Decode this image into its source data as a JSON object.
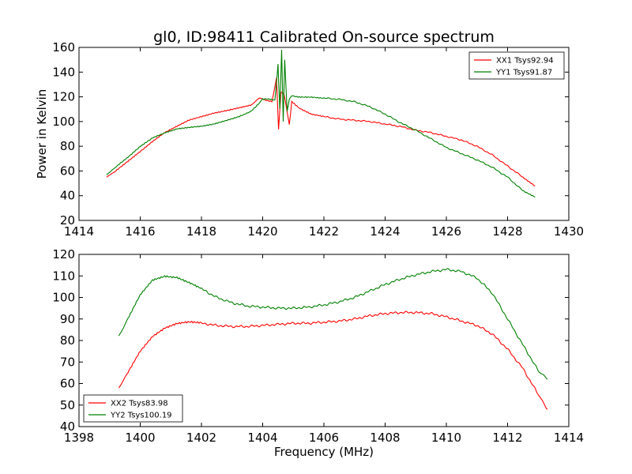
{
  "chart_data": [
    {
      "type": "line",
      "title": "gl0, ID:98411 Calibrated On-source spectrum",
      "xlabel": "",
      "ylabel": "Power in Kelvin",
      "xlim": [
        1414,
        1430
      ],
      "ylim": [
        20,
        160
      ],
      "xticks": [
        "1414",
        "1416",
        "1418",
        "1420",
        "1422",
        "1424",
        "1426",
        "1428",
        "1430"
      ],
      "yticks": [
        "20",
        "40",
        "60",
        "80",
        "100",
        "120",
        "140",
        "160"
      ],
      "legend": "top-right",
      "series": [
        {
          "name": "XX1 Tsys92.94",
          "color": "#ff0000",
          "points": [
            [
              1414.9,
              55
            ],
            [
              1415.2,
              60
            ],
            [
              1415.6,
              68
            ],
            [
              1416.0,
              76
            ],
            [
              1416.4,
              84
            ],
            [
              1416.8,
              91
            ],
            [
              1417.2,
              96
            ],
            [
              1417.6,
              101
            ],
            [
              1418.0,
              104
            ],
            [
              1418.4,
              107
            ],
            [
              1418.8,
              109
            ],
            [
              1419.2,
              111
            ],
            [
              1419.6,
              113
            ],
            [
              1419.9,
              119
            ],
            [
              1420.1,
              117
            ],
            [
              1420.3,
              116
            ],
            [
              1420.45,
              135
            ],
            [
              1420.52,
              94
            ],
            [
              1420.6,
              124
            ],
            [
              1420.7,
              122
            ],
            [
              1420.8,
              108
            ],
            [
              1420.87,
              97
            ],
            [
              1420.95,
              116
            ],
            [
              1421.2,
              111
            ],
            [
              1421.6,
              106
            ],
            [
              1422.0,
              104
            ],
            [
              1422.5,
              102
            ],
            [
              1423.0,
              101
            ],
            [
              1423.5,
              100
            ],
            [
              1424.0,
              98
            ],
            [
              1424.5,
              96
            ],
            [
              1425.0,
              93
            ],
            [
              1425.5,
              91
            ],
            [
              1426.0,
              88
            ],
            [
              1426.5,
              85
            ],
            [
              1427.0,
              80
            ],
            [
              1427.5,
              73
            ],
            [
              1428.0,
              64
            ],
            [
              1428.5,
              55
            ],
            [
              1428.9,
              48
            ]
          ]
        },
        {
          "name": "YY1 Tsys91.87",
          "color": "#008000",
          "points": [
            [
              1414.9,
              57
            ],
            [
              1415.2,
              63
            ],
            [
              1415.6,
              71
            ],
            [
              1416.0,
              80
            ],
            [
              1416.4,
              87
            ],
            [
              1416.8,
              91
            ],
            [
              1417.2,
              94
            ],
            [
              1417.6,
              95
            ],
            [
              1418.0,
              96
            ],
            [
              1418.4,
              98
            ],
            [
              1418.8,
              101
            ],
            [
              1419.2,
              104
            ],
            [
              1419.6,
              108
            ],
            [
              1419.85,
              114
            ],
            [
              1420.0,
              118
            ],
            [
              1420.2,
              118
            ],
            [
              1420.4,
              117
            ],
            [
              1420.5,
              146
            ],
            [
              1420.56,
              110
            ],
            [
              1420.62,
              158
            ],
            [
              1420.67,
              100
            ],
            [
              1420.72,
              150
            ],
            [
              1420.8,
              108
            ],
            [
              1420.87,
              118
            ],
            [
              1420.95,
              121
            ],
            [
              1421.2,
              120
            ],
            [
              1421.6,
              120
            ],
            [
              1422.0,
              119
            ],
            [
              1422.5,
              118
            ],
            [
              1423.0,
              116
            ],
            [
              1423.5,
              112
            ],
            [
              1424.0,
              106
            ],
            [
              1424.5,
              99
            ],
            [
              1425.0,
              93
            ],
            [
              1425.5,
              86
            ],
            [
              1426.0,
              79
            ],
            [
              1426.5,
              74
            ],
            [
              1427.0,
              69
            ],
            [
              1427.5,
              63
            ],
            [
              1428.0,
              55
            ],
            [
              1428.5,
              44
            ],
            [
              1428.9,
              39
            ]
          ]
        }
      ]
    },
    {
      "type": "line",
      "title": "",
      "xlabel": "Frequency (MHz)",
      "ylabel": "",
      "xlim": [
        1398,
        1414
      ],
      "ylim": [
        40,
        120
      ],
      "xticks": [
        "1398",
        "1400",
        "1402",
        "1404",
        "1406",
        "1408",
        "1410",
        "1412",
        "1414"
      ],
      "yticks": [
        "40",
        "50",
        "60",
        "70",
        "80",
        "90",
        "100",
        "110",
        "120"
      ],
      "legend": "bottom-left",
      "series": [
        {
          "name": "XX2 Tsys83.98",
          "color": "#ff0000",
          "points": [
            [
              1399.3,
              58
            ],
            [
              1399.6,
              65
            ],
            [
              1400.0,
              75
            ],
            [
              1400.4,
              82
            ],
            [
              1400.8,
              86
            ],
            [
              1401.2,
              88
            ],
            [
              1401.6,
              88.5
            ],
            [
              1402.0,
              88
            ],
            [
              1402.5,
              87
            ],
            [
              1403.0,
              86.5
            ],
            [
              1403.5,
              86.5
            ],
            [
              1404.0,
              87
            ],
            [
              1404.5,
              87.5
            ],
            [
              1405.0,
              88
            ],
            [
              1405.5,
              88
            ],
            [
              1406.0,
              88.5
            ],
            [
              1406.5,
              89
            ],
            [
              1407.0,
              90
            ],
            [
              1407.5,
              91.5
            ],
            [
              1408.0,
              92.5
            ],
            [
              1408.5,
              93
            ],
            [
              1409.0,
              93
            ],
            [
              1409.5,
              92.5
            ],
            [
              1410.0,
              91
            ],
            [
              1410.5,
              89
            ],
            [
              1411.0,
              87
            ],
            [
              1411.5,
              83
            ],
            [
              1412.0,
              76
            ],
            [
              1412.5,
              67
            ],
            [
              1413.0,
              55
            ],
            [
              1413.3,
              48
            ]
          ]
        },
        {
          "name": "YY2 Tsys100.19",
          "color": "#008000",
          "points": [
            [
              1399.3,
              82
            ],
            [
              1399.6,
              90
            ],
            [
              1400.0,
              101
            ],
            [
              1400.4,
              108
            ],
            [
              1400.8,
              110
            ],
            [
              1401.2,
              109.5
            ],
            [
              1401.6,
              107
            ],
            [
              1402.0,
              104
            ],
            [
              1402.5,
              100
            ],
            [
              1403.0,
              97.5
            ],
            [
              1403.5,
              96
            ],
            [
              1404.0,
              95.5
            ],
            [
              1404.5,
              95
            ],
            [
              1405.0,
              95
            ],
            [
              1405.5,
              95.5
            ],
            [
              1406.0,
              96.5
            ],
            [
              1406.5,
              98
            ],
            [
              1407.0,
              100
            ],
            [
              1407.5,
              103
            ],
            [
              1408.0,
              106
            ],
            [
              1408.5,
              108.5
            ],
            [
              1409.0,
              110.5
            ],
            [
              1409.5,
              112
            ],
            [
              1410.0,
              113
            ],
            [
              1410.5,
              112
            ],
            [
              1411.0,
              109
            ],
            [
              1411.5,
              102
            ],
            [
              1412.0,
              90
            ],
            [
              1412.5,
              78
            ],
            [
              1413.0,
              66
            ],
            [
              1413.3,
              62
            ]
          ]
        }
      ]
    }
  ]
}
